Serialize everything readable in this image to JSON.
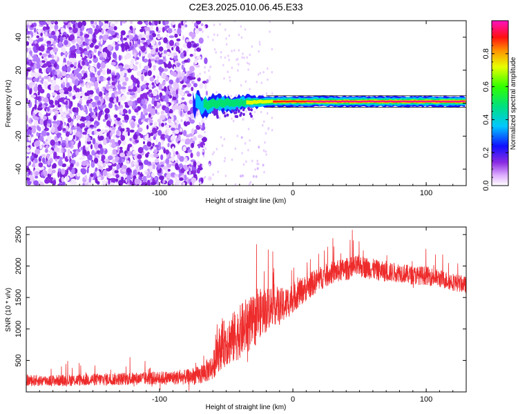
{
  "title": "C2E3.2025.010.06.45.E33",
  "chart_data": [
    {
      "type": "heatmap",
      "name": "spectrogram",
      "xlabel": "Height of straight line (km)",
      "ylabel": "Frequency (Hz)",
      "xlim": [
        -200,
        130
      ],
      "ylim": [
        -50,
        50
      ],
      "x_ticks": [
        -100,
        0,
        100
      ],
      "y_ticks": [
        -40,
        -20,
        0,
        20,
        40
      ],
      "colorbar": {
        "label": "Normalized spectral amplitude",
        "range": [
          0,
          1
        ],
        "ticks": [
          0,
          0.2,
          0.4,
          0.6,
          0.8
        ],
        "tick_labels": [
          "0.0",
          "0.2",
          "0.4",
          "0.6",
          "0.8"
        ]
      },
      "features": {
        "noise_region_x": [
          -200,
          -70
        ],
        "carrier_x": [
          -75,
          130
        ],
        "carrier_freq_hz": [
          1,
          1
        ],
        "carrier_peak_amplitude": 0.9
      }
    },
    {
      "type": "line",
      "name": "snr",
      "xlabel": "Height of straight line (km)",
      "ylabel": "SNR (10 * v/v)",
      "xlim": [
        -200,
        130
      ],
      "ylim": [
        0,
        2620
      ],
      "x_ticks": [
        -100,
        0,
        100
      ],
      "y_ticks": [
        500,
        1000,
        1500,
        2000,
        2500
      ],
      "color": "#ee2b2b",
      "series": [
        {
          "x": [
            -200,
            -180,
            -160,
            -140,
            -120,
            -100,
            -90,
            -80,
            -70,
            -60,
            -55,
            -50,
            -45,
            -40,
            -35,
            -30,
            -25,
            -20,
            -15,
            -10,
            -5,
            0,
            10,
            20,
            30,
            40,
            50,
            60,
            70,
            80,
            90,
            100,
            110,
            120,
            130
          ],
          "y": [
            180,
            180,
            190,
            200,
            210,
            220,
            225,
            235,
            260,
            400,
            700,
            800,
            850,
            950,
            1050,
            1100,
            1250,
            1300,
            1400,
            1350,
            1400,
            1500,
            1650,
            1800,
            1900,
            1950,
            2000,
            1950,
            1900,
            1900,
            1850,
            1850,
            1800,
            1750,
            1700
          ],
          "noise_amplitude": [
            150,
            150,
            160,
            170,
            170,
            180,
            190,
            200,
            250,
            350,
            600,
            650,
            700,
            700,
            750,
            700,
            650,
            600,
            550,
            500,
            450,
            400,
            350,
            320,
            300,
            300,
            300,
            280,
            260,
            260,
            250,
            250,
            240,
            240,
            220
          ]
        }
      ]
    }
  ]
}
